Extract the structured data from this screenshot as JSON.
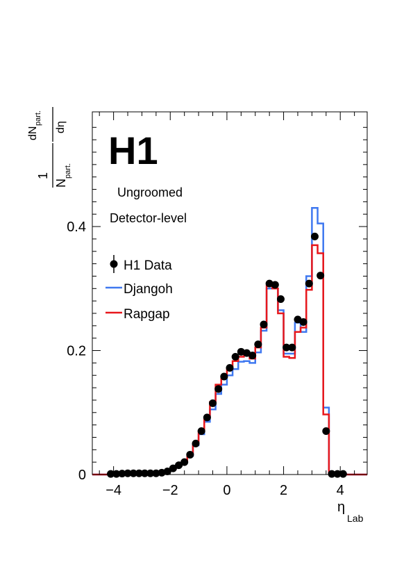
{
  "chart_data": {
    "type": "line",
    "logo": "H1",
    "annotations": [
      "Ungroomed",
      "Detector-level"
    ],
    "xlabel": {
      "main": "η",
      "sub": "Lab"
    },
    "ylabel": {
      "prefix": "1",
      "numerator": "dN",
      "numerator_sub": "part.",
      "denominator": "N",
      "denominator_sub": "part.",
      "diff_num": "dN",
      "diff_num_sub": "part.",
      "diff_den": "dη"
    },
    "xlim": [
      -4.75,
      4.95
    ],
    "ylim": [
      0,
      0.585
    ],
    "x_ticks": [
      -4,
      -2,
      0,
      2,
      4
    ],
    "x_tick_labels": [
      "−4",
      "−2",
      "0",
      "2",
      "4"
    ],
    "y_ticks": [
      0,
      0.2,
      0.4
    ],
    "y_tick_labels": [
      "0",
      "0.2",
      "0.4"
    ],
    "legend_position": "top-left",
    "series": [
      {
        "name": "H1 Data",
        "kind": "points",
        "color": "#000000",
        "x": [
          -4.1,
          -3.9,
          -3.7,
          -3.5,
          -3.3,
          -3.1,
          -2.9,
          -2.7,
          -2.5,
          -2.3,
          -2.1,
          -1.9,
          -1.7,
          -1.5,
          -1.3,
          -1.1,
          -0.9,
          -0.7,
          -0.5,
          -0.3,
          -0.1,
          0.1,
          0.3,
          0.5,
          0.7,
          0.9,
          1.1,
          1.3,
          1.5,
          1.7,
          1.9,
          2.1,
          2.3,
          2.5,
          2.7,
          2.9,
          3.1,
          3.3,
          3.5,
          3.7,
          3.9,
          4.1
        ],
        "values": [
          0.001,
          0.001,
          0.0015,
          0.002,
          0.002,
          0.002,
          0.002,
          0.002,
          0.002,
          0.003,
          0.005,
          0.01,
          0.015,
          0.02,
          0.032,
          0.05,
          0.07,
          0.092,
          0.115,
          0.138,
          0.158,
          0.172,
          0.19,
          0.198,
          0.196,
          0.192,
          0.21,
          0.242,
          0.308,
          0.306,
          0.283,
          0.205,
          0.205,
          0.25,
          0.246,
          0.308,
          0.384,
          0.321,
          0.07,
          0.001,
          0.001,
          0.001
        ]
      },
      {
        "name": "Djangoh",
        "kind": "step",
        "color": "#3f78f0",
        "edges": [
          -4.75,
          -4.2,
          -4.0,
          -3.8,
          -3.6,
          -3.4,
          -3.2,
          -3.0,
          -2.8,
          -2.6,
          -2.4,
          -2.2,
          -2.0,
          -1.8,
          -1.6,
          -1.4,
          -1.2,
          -1.0,
          -0.8,
          -0.6,
          -0.4,
          -0.2,
          0.0,
          0.2,
          0.4,
          0.6,
          0.8,
          1.0,
          1.2,
          1.4,
          1.6,
          1.8,
          2.0,
          2.2,
          2.4,
          2.6,
          2.8,
          3.0,
          3.2,
          3.4,
          3.6,
          3.8,
          4.0,
          4.2,
          4.95
        ],
        "values": [
          0,
          0.001,
          0.001,
          0.0015,
          0.002,
          0.002,
          0.002,
          0.002,
          0.002,
          0.002,
          0.003,
          0.005,
          0.009,
          0.014,
          0.019,
          0.03,
          0.047,
          0.065,
          0.085,
          0.105,
          0.13,
          0.145,
          0.16,
          0.17,
          0.182,
          0.183,
          0.18,
          0.197,
          0.232,
          0.3,
          0.3,
          0.265,
          0.195,
          0.195,
          0.245,
          0.23,
          0.32,
          0.43,
          0.405,
          0.108,
          0.001,
          0.001,
          0.001,
          0
        ]
      },
      {
        "name": "Rapgap",
        "kind": "step",
        "color": "#e8171b",
        "edges": [
          -4.75,
          -4.2,
          -4.0,
          -3.8,
          -3.6,
          -3.4,
          -3.2,
          -3.0,
          -2.8,
          -2.6,
          -2.4,
          -2.2,
          -2.0,
          -1.8,
          -1.6,
          -1.4,
          -1.2,
          -1.0,
          -0.8,
          -0.6,
          -0.4,
          -0.2,
          0.0,
          0.2,
          0.4,
          0.6,
          0.8,
          1.0,
          1.2,
          1.4,
          1.6,
          1.8,
          2.0,
          2.2,
          2.4,
          2.6,
          2.8,
          3.0,
          3.2,
          3.4,
          3.6,
          3.8,
          4.0,
          4.2,
          4.95
        ],
        "values": [
          0,
          0.001,
          0.001,
          0.0015,
          0.002,
          0.002,
          0.002,
          0.002,
          0.002,
          0.002,
          0.003,
          0.005,
          0.009,
          0.014,
          0.02,
          0.032,
          0.05,
          0.07,
          0.092,
          0.117,
          0.145,
          0.157,
          0.17,
          0.183,
          0.19,
          0.195,
          0.187,
          0.205,
          0.237,
          0.305,
          0.3,
          0.26,
          0.19,
          0.188,
          0.23,
          0.237,
          0.298,
          0.37,
          0.357,
          0.097,
          0.001,
          0.001,
          0.001,
          0
        ]
      }
    ]
  }
}
